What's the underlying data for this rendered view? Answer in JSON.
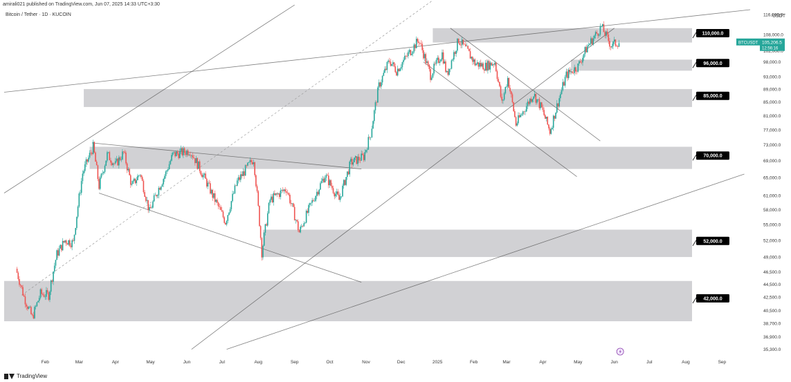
{
  "header": {
    "published": "amirali021 published on TradingView.com, Jun 07, 2025 14:33 UTC+3:30",
    "symbol": "Bitcoin / Tether · 1D · KUCOIN",
    "currency": "USDT",
    "branding": "TradingView"
  },
  "colors": {
    "up": "#26a69a",
    "down": "#ef5350",
    "zone": "#c9c9cd",
    "label_bg": "#000000",
    "price_tag": "#26a69a"
  },
  "chart_data": {
    "type": "candlestick",
    "symbol": "BTCUSDT",
    "last_price": "105,206.5",
    "countdown": "12:56:16",
    "x_ticks": [
      "Feb",
      "Mar",
      "Apr",
      "May",
      "Jun",
      "Jul",
      "Aug",
      "Sep",
      "Oct",
      "Nov",
      "Dec",
      "2025",
      "Feb",
      "Mar",
      "Apr",
      "May",
      "Jun",
      "Jul",
      "Aug",
      "Sep"
    ],
    "y_ticks": [
      "116,000.0",
      "108,000.0",
      "102,000.0",
      "98,000.0",
      "93,000.0",
      "89,000.0",
      "85,000.0",
      "81,000.0",
      "77,000.0",
      "73,000.0",
      "69,000.0",
      "65,000.0",
      "61,000.0",
      "58,000.0",
      "55,000.0",
      "52,000.0",
      "49,000.0",
      "46,500.0",
      "44,500.0",
      "42,500.0",
      "40,500.0",
      "38,700.0",
      "36,900.0",
      "35,300.0"
    ],
    "levels": [
      {
        "label": "110,000.0",
        "low": 105000,
        "high": 110500
      },
      {
        "label": "96,000.0",
        "low": 95000,
        "high": 98800
      },
      {
        "label": "85,000.0",
        "low": 83500,
        "high": 89000
      },
      {
        "label": "70,000.0",
        "low": 67000,
        "high": 72500
      },
      {
        "label": "52,000.0",
        "low": 49000,
        "high": 54000
      },
      {
        "label": "42,000.0",
        "low": 39000,
        "high": 45000
      }
    ],
    "price_path": [
      [
        "2024-01-08",
        47000
      ],
      [
        "2024-01-15",
        42500
      ],
      [
        "2024-01-22",
        39500
      ],
      [
        "2024-01-29",
        43000
      ],
      [
        "2024-02-05",
        42800
      ],
      [
        "2024-02-12",
        49500
      ],
      [
        "2024-02-19",
        52000
      ],
      [
        "2024-02-26",
        51500
      ],
      [
        "2024-03-05",
        66000
      ],
      [
        "2024-03-14",
        72500
      ],
      [
        "2024-03-19",
        63000
      ],
      [
        "2024-03-26",
        70500
      ],
      [
        "2024-04-02",
        68000
      ],
      [
        "2024-04-09",
        71000
      ],
      [
        "2024-04-16",
        63000
      ],
      [
        "2024-04-23",
        66000
      ],
      [
        "2024-05-01",
        57500
      ],
      [
        "2024-05-08",
        62000
      ],
      [
        "2024-05-15",
        66000
      ],
      [
        "2024-05-21",
        70500
      ],
      [
        "2024-06-05",
        71500
      ],
      [
        "2024-06-15",
        66000
      ],
      [
        "2024-06-24",
        61000
      ],
      [
        "2024-07-05",
        55500
      ],
      [
        "2024-07-15",
        64000
      ],
      [
        "2024-07-29",
        69500
      ],
      [
        "2024-08-05",
        49800
      ],
      [
        "2024-08-12",
        60000
      ],
      [
        "2024-08-26",
        62500
      ],
      [
        "2024-09-06",
        53500
      ],
      [
        "2024-09-15",
        58500
      ],
      [
        "2024-09-28",
        65500
      ],
      [
        "2024-10-10",
        60000
      ],
      [
        "2024-10-20",
        68500
      ],
      [
        "2024-10-31",
        70000
      ],
      [
        "2024-11-06",
        76000
      ],
      [
        "2024-11-13",
        90000
      ],
      [
        "2024-11-22",
        98500
      ],
      [
        "2024-11-28",
        95000
      ],
      [
        "2024-12-05",
        99000
      ],
      [
        "2024-12-17",
        106000
      ],
      [
        "2024-12-27",
        93500
      ],
      [
        "2025-01-06",
        101000
      ],
      [
        "2025-01-10",
        93500
      ],
      [
        "2025-01-20",
        106000
      ],
      [
        "2025-01-28",
        101500
      ],
      [
        "2025-02-03",
        97500
      ],
      [
        "2025-02-12",
        96500
      ],
      [
        "2025-02-20",
        98000
      ],
      [
        "2025-02-26",
        84500
      ],
      [
        "2025-03-03",
        92500
      ],
      [
        "2025-03-10",
        78500
      ],
      [
        "2025-03-25",
        87500
      ],
      [
        "2025-04-01",
        83000
      ],
      [
        "2025-04-08",
        76500
      ],
      [
        "2025-04-22",
        93500
      ],
      [
        "2025-05-02",
        96500
      ],
      [
        "2025-05-10",
        103500
      ],
      [
        "2025-05-22",
        111000
      ],
      [
        "2025-05-30",
        104000
      ],
      [
        "2025-06-06",
        105200
      ]
    ],
    "trend_lines": [
      {
        "from": [
          "2023-12-28",
          88000
        ],
        "to": [
          "2025-09-25",
          118000
        ]
      },
      {
        "from": [
          "2023-12-28",
          61500
        ],
        "to": [
          "2024-09-01",
          120000
        ]
      },
      {
        "from": [
          "2024-03-12",
          73500
        ],
        "to": [
          "2024-10-28",
          67000
        ]
      },
      {
        "from": [
          "2024-03-18",
          61500
        ],
        "to": [
          "2024-10-28",
          44800
        ]
      },
      {
        "from": [
          "2024-06-05",
          35300
        ],
        "to": [
          "2025-06-01",
          110500
        ]
      },
      {
        "from": [
          "2024-07-05",
          35300
        ],
        "to": [
          "2025-09-20",
          65800
        ]
      },
      {
        "from": [
          "2024-12-20",
          98000
        ],
        "to": [
          "2025-04-30",
          65200
        ]
      },
      {
        "from": [
          "2025-01-12",
          110500
        ],
        "to": [
          "2025-05-20",
          74000
        ]
      }
    ],
    "dashed_line": {
      "from": [
        "2024-01-12",
        42800
      ],
      "to": [
        "2024-12-28",
        122000
      ]
    }
  }
}
